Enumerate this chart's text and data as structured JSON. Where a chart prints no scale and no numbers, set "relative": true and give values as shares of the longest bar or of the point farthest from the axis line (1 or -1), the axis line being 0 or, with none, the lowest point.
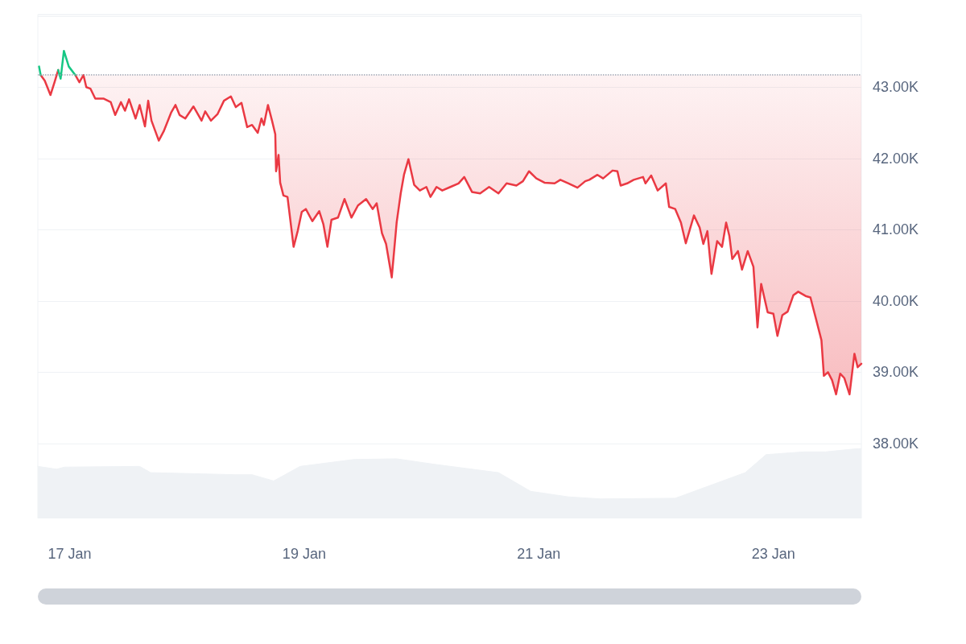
{
  "chart_data": [
    {
      "type": "line",
      "grid": "y",
      "marker": "none",
      "line_style": "solid",
      "xlim": [
        "--01-16T17:30",
        "--01-23T18:00"
      ],
      "xticks": [
        {
          "value": "--01-17T00:00",
          "label": "17 Jan"
        },
        {
          "value": "--01-19T00:00",
          "label": "19 Jan"
        },
        {
          "value": "--01-21T00:00",
          "label": "21 Jan"
        },
        {
          "value": "--01-23T00:00",
          "label": "23 Jan"
        }
      ],
      "ylim": [
        36960,
        44020
      ],
      "yticks": [
        {
          "value": 38000,
          "label": "38.00K"
        },
        {
          "value": 39000,
          "label": "39.00K"
        },
        {
          "value": 40000,
          "label": "40.00K"
        },
        {
          "value": 41000,
          "label": "41.00K"
        },
        {
          "value": 42000,
          "label": "42.00K"
        },
        {
          "value": 43000,
          "label": "43.00K"
        }
      ],
      "ref_lines": [
        {
          "axis": "y",
          "value": 43170,
          "color": "#a0a7b4",
          "line_style": "dotted"
        }
      ],
      "x": [
        "--01-16T18:05",
        "--01-16T18:55",
        "--01-16T20:05",
        "--01-16T20:55",
        "--01-16T21:40",
        "--01-16T22:10",
        "--01-16T22:50",
        "--01-16T23:50",
        "--01-17T01:10",
        "--01-17T02:00",
        "--01-17T02:50",
        "--01-17T03:25",
        "--01-17T04:15",
        "--01-17T05:15",
        "--01-17T06:55",
        "--01-17T08:25",
        "--01-17T09:20",
        "--01-17T10:30",
        "--01-17T11:20",
        "--01-17T12:10",
        "--01-17T13:30",
        "--01-17T14:20",
        "--01-17T15:25",
        "--01-17T16:05",
        "--01-17T16:45",
        "--01-17T18:15",
        "--01-17T19:15",
        "--01-17T20:45",
        "--01-17T21:40",
        "--01-17T22:30",
        "--01-17T23:40",
        "--01-18T01:20",
        "--01-18T03:00",
        "--01-18T03:45",
        "--01-18T04:55",
        "--01-18T06:15",
        "--01-18T07:35",
        "--01-18T09:00",
        "--01-18T10:00",
        "--01-18T11:10",
        "--01-18T12:20",
        "--01-18T13:20",
        "--01-18T14:30",
        "--01-18T15:15",
        "--01-18T15:45",
        "--01-18T16:35",
        "--01-18T17:25",
        "--01-18T18:05",
        "--01-18T18:15",
        "--01-18T18:45",
        "--01-18T19:05",
        "--01-18T19:45",
        "--01-18T20:35",
        "--01-18T21:50",
        "--01-18T22:40",
        "--01-18T23:30",
        "--01-19T00:20",
        "--01-19T01:40",
        "--01-19T03:05",
        "--01-19T03:55",
        "--01-19T04:45",
        "--01-19T05:35",
        "--01-19T06:55",
        "--01-19T08:15",
        "--01-19T09:40",
        "--01-19T11:00",
        "--01-19T12:40",
        "--01-19T14:00",
        "--01-19T14:50",
        "--01-19T15:55",
        "--01-19T16:45",
        "--01-19T17:55",
        "--01-19T18:55",
        "--01-19T19:45",
        "--01-19T20:25",
        "--01-19T21:20",
        "--01-19T22:30",
        "--01-19T23:40",
        "--01-20T01:00",
        "--01-20T01:50",
        "--01-20T03:05",
        "--01-20T04:15",
        "--01-20T05:55",
        "--01-20T07:35",
        "--01-20T08:45",
        "--01-20T10:20",
        "--01-20T12:00",
        "--01-20T13:50",
        "--01-20T15:45",
        "--01-20T17:25",
        "--01-20T19:25",
        "--01-20T20:45",
        "--01-20T22:00",
        "--01-20T23:30",
        "--01-21T01:10",
        "--01-21T03:15",
        "--01-21T04:25",
        "--01-21T06:05",
        "--01-21T07:55",
        "--01-21T09:30",
        "--01-21T10:20",
        "--01-21T12:00",
        "--01-21T13:10",
        "--01-21T15:05",
        "--01-21T16:05",
        "--01-21T16:45",
        "--01-21T18:05",
        "--01-21T19:25",
        "--01-21T21:20",
        "--01-21T21:50",
        "--01-21T23:00",
        "--01-22T00:20",
        "--01-22T02:00",
        "--01-22T02:40",
        "--01-22T03:55",
        "--01-22T05:05",
        "--01-22T06:05",
        "--01-22T07:45",
        "--01-22T08:55",
        "--01-22T09:40",
        "--01-22T10:30",
        "--01-22T11:20",
        "--01-22T12:30",
        "--01-22T13:30",
        "--01-22T14:20",
        "--01-22T15:00",
        "--01-22T15:35",
        "--01-22T16:45",
        "--01-22T17:35",
        "--01-22T18:45",
        "--01-22T19:55",
        "--01-22T20:45",
        "--01-22T21:30",
        "--01-22T22:50",
        "--01-23T00:00",
        "--01-23T00:50",
        "--01-23T01:50",
        "--01-23T02:55",
        "--01-23T04:05",
        "--01-23T05:05",
        "--01-23T06:35",
        "--01-23T07:35",
        "--01-23T08:45",
        "--01-23T09:50",
        "--01-23T10:20",
        "--01-23T11:10",
        "--01-23T12:00",
        "--01-23T12:50",
        "--01-23T13:40",
        "--01-23T14:30",
        "--01-23T15:35",
        "--01-23T16:35",
        "--01-23T17:15",
        "--01-23T18:00"
      ],
      "series": [
        {
          "type": "line",
          "color": "#ea3943",
          "values": [
            43170,
            43090,
            42890,
            43070,
            43240,
            null,
            null,
            null,
            43170,
            43070,
            43170,
            43000,
            42980,
            42840,
            42840,
            42790,
            42610,
            42790,
            42670,
            42830,
            42560,
            42750,
            42450,
            42810,
            42530,
            42250,
            42380,
            42640,
            42750,
            42610,
            42560,
            42730,
            42530,
            42660,
            42530,
            42620,
            42810,
            42870,
            42720,
            42780,
            42440,
            42470,
            42360,
            42560,
            42470,
            42750,
            42530,
            42340,
            41820,
            42050,
            41660,
            41480,
            41460,
            40760,
            40980,
            41250,
            41290,
            41120,
            41260,
            41080,
            40760,
            41140,
            41170,
            41430,
            41170,
            41340,
            41430,
            41290,
            41370,
            40950,
            40800,
            40330,
            41100,
            41510,
            41770,
            41990,
            41630,
            41550,
            41600,
            41460,
            41600,
            41550,
            41600,
            41650,
            41740,
            41530,
            41510,
            41600,
            41510,
            41650,
            41620,
            41680,
            41820,
            41720,
            41660,
            41650,
            41700,
            41650,
            41590,
            41680,
            41700,
            41770,
            41720,
            41830,
            41820,
            41620,
            41650,
            41700,
            41740,
            41650,
            41760,
            41550,
            41650,
            41320,
            41290,
            41100,
            40810,
            41200,
            41030,
            40800,
            40980,
            40380,
            40840,
            40760,
            41100,
            40910,
            40590,
            40700,
            40440,
            40700,
            40480,
            39630,
            40240,
            39840,
            39820,
            39510,
            39800,
            39850,
            40080,
            40130,
            40070,
            40050,
            39740,
            39450,
            38950,
            39000,
            38890,
            38690,
            38980,
            38920,
            38690,
            39260,
            39070,
            39120
          ],
          "lower": [
            43170,
            43090,
            42890,
            43070,
            43240,
            null,
            null,
            null,
            43170,
            43070,
            43170,
            43000,
            42980,
            42840,
            42840,
            42790,
            42610,
            42790,
            42670,
            42830,
            42560,
            42750,
            42450,
            42810,
            42530,
            42250,
            42380,
            42640,
            42750,
            42610,
            42560,
            42730,
            42530,
            42660,
            42530,
            42620,
            42810,
            42870,
            42720,
            42780,
            42440,
            42470,
            42360,
            42560,
            42470,
            42750,
            42530,
            42340,
            41820,
            42050,
            41660,
            41480,
            41460,
            40760,
            40980,
            41250,
            41290,
            41120,
            41260,
            41080,
            40760,
            41140,
            41170,
            41430,
            41170,
            41340,
            41430,
            41290,
            41370,
            40950,
            40800,
            40330,
            41100,
            41510,
            41770,
            41990,
            41630,
            41550,
            41600,
            41460,
            41600,
            41550,
            41600,
            41650,
            41740,
            41530,
            41510,
            41600,
            41510,
            41650,
            41620,
            41680,
            41820,
            41720,
            41660,
            41650,
            41700,
            41650,
            41590,
            41680,
            41700,
            41770,
            41720,
            41830,
            41820,
            41620,
            41650,
            41700,
            41740,
            41650,
            41760,
            41550,
            41650,
            41320,
            41290,
            41100,
            40810,
            41200,
            41030,
            40800,
            40980,
            40380,
            40840,
            40760,
            41100,
            40910,
            40590,
            40700,
            40440,
            40700,
            40480,
            39630,
            40240,
            39840,
            39820,
            39510,
            39800,
            39850,
            40080,
            40130,
            40070,
            40050,
            39740,
            39450,
            38950,
            39000,
            38890,
            38690,
            38980,
            38920,
            38690,
            39260,
            39070,
            39120
          ],
          "upper": [
            43170,
            43170,
            43170,
            43170,
            43170,
            null,
            null,
            null,
            43170,
            43170,
            43170,
            43170,
            43170,
            43170,
            43170,
            43170,
            43170,
            43170,
            43170,
            43170,
            43170,
            43170,
            43170,
            43170,
            43170,
            43170,
            43170,
            43170,
            43170,
            43170,
            43170,
            43170,
            43170,
            43170,
            43170,
            43170,
            43170,
            43170,
            43170,
            43170,
            43170,
            43170,
            43170,
            43170,
            43170,
            43170,
            43170,
            43170,
            43170,
            43170,
            43170,
            43170,
            43170,
            43170,
            43170,
            43170,
            43170,
            43170,
            43170,
            43170,
            43170,
            43170,
            43170,
            43170,
            43170,
            43170,
            43170,
            43170,
            43170,
            43170,
            43170,
            43170,
            43170,
            43170,
            43170,
            43170,
            43170,
            43170,
            43170,
            43170,
            43170,
            43170,
            43170,
            43170,
            43170,
            43170,
            43170,
            43170,
            43170,
            43170,
            43170,
            43170,
            43170,
            43170,
            43170,
            43170,
            43170,
            43170,
            43170,
            43170,
            43170,
            43170,
            43170,
            43170,
            43170,
            43170,
            43170,
            43170,
            43170,
            43170,
            43170,
            43170,
            43170,
            43170,
            43170,
            43170,
            43170,
            43170,
            43170,
            43170,
            43170,
            43170,
            43170,
            43170,
            43170,
            43170,
            43170,
            43170,
            43170,
            43170,
            43170,
            43170,
            43170,
            43170,
            43170,
            43170,
            43170,
            43170,
            43170,
            43170,
            43170,
            43170,
            43170,
            43170,
            43170,
            43170,
            43170,
            43170,
            43170,
            43170,
            43170,
            43170,
            43170,
            43170
          ]
        },
        {
          "type": "line",
          "color": "#16c784",
          "x": [
            "--01-16T17:45",
            "--01-16T18:05",
            "--01-16T18:55",
            "--01-16T21:40",
            "--01-16T22:10",
            "--01-16T22:50",
            "--01-16T23:50",
            "--01-17T01:10"
          ],
          "values": [
            43290,
            43170,
            null,
            43240,
            43120,
            43510,
            43290,
            43170
          ]
        }
      ]
    },
    {
      "type": "area",
      "relative": true,
      "marker": "none",
      "xlim": [
        "--01-16T17:30",
        "--01-23T18:00"
      ],
      "x": [
        "--01-16T17:30",
        "--01-16T21:20",
        "--01-16T23:00",
        "--01-17T14:20",
        "--01-17T16:35",
        "--01-18T10:00",
        "--01-18T13:20",
        "--01-18T17:45",
        "--01-18T23:10",
        "--01-19T10:10",
        "--01-19T18:55",
        "--01-20T02:40",
        "--01-20T15:45",
        "--01-20T22:20",
        "--01-21T06:05",
        "--01-21T12:40",
        "--01-22T03:55",
        "--01-22T18:15",
        "--01-22T22:30",
        "--01-23T06:15",
        "--01-23T10:40",
        "--01-23T17:45",
        "--01-23T18:00"
      ],
      "series": [
        {
          "color": "#eff2f5",
          "values": [
            0.74,
            0.7,
            0.73,
            0.74,
            0.65,
            0.62,
            0.62,
            0.53,
            0.74,
            0.84,
            0.85,
            0.77,
            0.65,
            0.38,
            0.3,
            0.27,
            0.28,
            0.65,
            0.91,
            0.95,
            0.95,
            1.0,
            1.0
          ]
        }
      ]
    }
  ]
}
